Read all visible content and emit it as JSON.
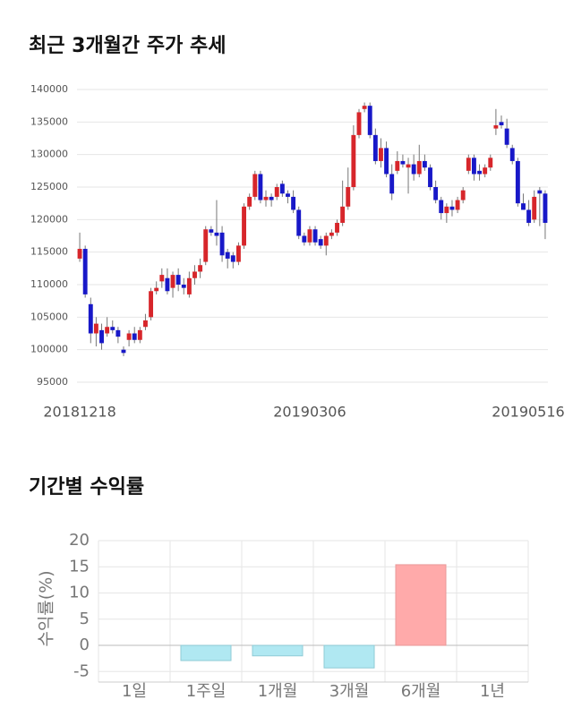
{
  "chart_data": [
    {
      "type": "candlestick",
      "title": "최근 3개월간 주가 추세",
      "categories": [
        "20181218",
        null,
        null,
        null,
        null,
        null,
        null,
        null,
        null,
        null,
        null,
        null,
        null,
        null,
        null,
        null,
        null,
        null,
        null,
        null,
        null,
        null,
        null,
        null,
        null,
        null,
        null,
        null,
        null,
        null,
        null,
        null,
        null,
        null,
        null,
        null,
        null,
        null,
        null,
        null,
        null,
        null,
        "20190306",
        null,
        null,
        null,
        null,
        null,
        null,
        null,
        null,
        null,
        null,
        null,
        null,
        null,
        null,
        null,
        null,
        null,
        null,
        null,
        null,
        null,
        null,
        null,
        null,
        null,
        null,
        null,
        null,
        null,
        null,
        null,
        null,
        null,
        null,
        null,
        null,
        null,
        null,
        null,
        null,
        null,
        null,
        "20190516"
      ],
      "open": [
        114000,
        115500,
        107000,
        102500,
        103000,
        102500,
        103500,
        103000,
        100000,
        101500,
        102500,
        101500,
        103500,
        105000,
        109000,
        110500,
        111000,
        109500,
        111500,
        110000,
        108500,
        111000,
        112000,
        113500,
        118500,
        118000,
        118000,
        115000,
        114500,
        113500,
        116000,
        122000,
        123500,
        127000,
        123000,
        123500,
        123500,
        125500,
        124000,
        123500,
        121500,
        117500,
        116500,
        118500,
        117000,
        116000,
        117500,
        118000,
        119500,
        122000,
        125000,
        133000,
        137000,
        137500,
        133000,
        129000,
        131000,
        127000,
        127500,
        129000,
        128000,
        128500,
        127000,
        129000,
        128000,
        125000,
        123000,
        121000,
        122000,
        121500,
        123000,
        127500,
        129500,
        127500,
        127000,
        128000,
        134000,
        135000,
        134000,
        131000,
        129000,
        122500,
        121500,
        120000,
        124500,
        124000
      ],
      "high": [
        118000,
        116000,
        108000,
        105000,
        104000,
        105000,
        104500,
        103500,
        100500,
        103000,
        103500,
        103500,
        105500,
        109500,
        110500,
        112500,
        112500,
        112000,
        112500,
        111000,
        112000,
        113000,
        114000,
        119000,
        119000,
        123000,
        119000,
        115500,
        115000,
        116500,
        122500,
        124000,
        127500,
        127500,
        124500,
        124000,
        125500,
        126000,
        124500,
        124500,
        122000,
        118000,
        119000,
        119000,
        117500,
        118000,
        118500,
        120000,
        126000,
        128000,
        134500,
        137000,
        138000,
        138000,
        134000,
        132500,
        132000,
        128500,
        130500,
        130000,
        129500,
        130000,
        131500,
        130000,
        128500,
        126000,
        123500,
        122500,
        123000,
        123500,
        125000,
        130000,
        130000,
        128500,
        128500,
        130000,
        137000,
        136000,
        135500,
        131500,
        129500,
        124000,
        123000,
        124500,
        125000,
        124500
      ],
      "low": [
        113500,
        108000,
        101000,
        100500,
        100000,
        102000,
        102500,
        101000,
        99000,
        100500,
        101000,
        101000,
        103000,
        104500,
        108500,
        109500,
        108500,
        108000,
        109000,
        108500,
        108000,
        110000,
        111000,
        113000,
        117500,
        116000,
        113500,
        112500,
        112500,
        113000,
        115500,
        121500,
        123000,
        122500,
        122000,
        122000,
        123000,
        123500,
        122500,
        121000,
        117000,
        116000,
        116000,
        116000,
        115500,
        114500,
        117000,
        117500,
        119000,
        121500,
        124500,
        132500,
        136500,
        132500,
        128500,
        128000,
        126500,
        123000,
        127000,
        128000,
        124000,
        126000,
        126500,
        127500,
        124500,
        122500,
        120000,
        119500,
        120500,
        121000,
        122500,
        127000,
        126000,
        126000,
        126500,
        127500,
        133000,
        134000,
        131000,
        128500,
        122000,
        121500,
        119000,
        119500,
        119000,
        117000
      ],
      "close": [
        115500,
        108500,
        102500,
        104000,
        101000,
        103500,
        103000,
        102000,
        99500,
        102500,
        101500,
        103000,
        104500,
        109000,
        109500,
        111500,
        109000,
        111500,
        110000,
        109500,
        111000,
        112000,
        113000,
        118500,
        118000,
        117500,
        114500,
        114000,
        113500,
        116000,
        122000,
        123500,
        127000,
        123000,
        123500,
        123000,
        125000,
        124000,
        123500,
        121500,
        117500,
        116500,
        118500,
        116500,
        116000,
        117500,
        118000,
        119500,
        122000,
        125000,
        133000,
        136500,
        137500,
        133000,
        129000,
        131000,
        127000,
        124000,
        129000,
        128500,
        128500,
        127000,
        129000,
        128000,
        125000,
        123000,
        121000,
        122000,
        121500,
        123000,
        124500,
        129500,
        127000,
        127000,
        128000,
        129500,
        134500,
        134500,
        131500,
        129000,
        122500,
        121500,
        119500,
        123500,
        124000,
        119500
      ],
      "up_color": "#d7262b",
      "down_color": "#1818c8",
      "ylim": [
        95000,
        140000
      ],
      "yticks": [
        95000,
        100000,
        105000,
        110000,
        115000,
        120000,
        125000,
        130000,
        135000,
        140000
      ],
      "grid": true
    },
    {
      "type": "bar",
      "title": "기간별 수익률",
      "ylabel": "수익률(%)",
      "categories": [
        "1일",
        "1주일",
        "1개월",
        "3개월",
        "6개월",
        "1년"
      ],
      "values": [
        null,
        -2.9,
        -2.0,
        -4.3,
        15.4,
        null
      ],
      "positive_color": "#ffaaaa",
      "negative_color": "#b0e8f2",
      "ylim": [
        -7,
        20
      ],
      "yticks": [
        -5,
        0,
        5,
        10,
        15,
        20
      ],
      "grid": true
    }
  ]
}
